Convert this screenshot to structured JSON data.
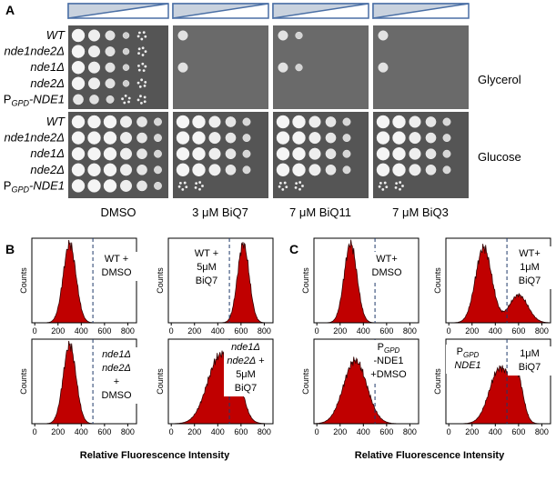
{
  "panel_a": {
    "label": "A",
    "strains": [
      "WT",
      "nde1nde2Δ",
      "nde1Δ",
      "nde2Δ"
    ],
    "strain_pgpd": {
      "main": "P",
      "sub": "GPD",
      "name": "-NDE1"
    },
    "media": [
      "Glycerol",
      "Glucose"
    ],
    "conditions": [
      "DMSO",
      "3 μM BiQ7",
      "7 μM BiQ11",
      "7 μM BiQ3"
    ]
  },
  "histogram_axis": {
    "ylabel": "Counts",
    "xticks": [
      0,
      200,
      400,
      600,
      800
    ]
  },
  "panel_b": {
    "label": "B",
    "xlabel": "Relative Fluorescence Intensity",
    "histograms": [
      {
        "annotation": [
          "WT +",
          "DMSO"
        ]
      },
      {
        "annotation": [
          "WT +",
          "5μM",
          "BiQ7"
        ]
      },
      {
        "annotation": [
          "nde1Δ",
          "nde2Δ",
          "+",
          "DMSO"
        ]
      },
      {
        "annotation": [
          "nde1Δ",
          "nde2Δ",
          "+",
          "5μM",
          "BiQ7"
        ]
      }
    ]
  },
  "panel_c": {
    "label": "C",
    "xlabel": "Relative Fluorescence Intensity",
    "histograms": [
      {
        "annotation": [
          "WT+",
          "DMSO"
        ]
      },
      {
        "annotation": [
          "WT+",
          "1μM",
          "BiQ7"
        ]
      },
      {
        "annotation": [
          "P",
          "GPD",
          "-NDE1",
          "+DMSO"
        ]
      },
      {
        "annotation": [
          "P",
          "GPD",
          "NDE1",
          "1μM",
          "BiQ7"
        ]
      }
    ]
  }
}
